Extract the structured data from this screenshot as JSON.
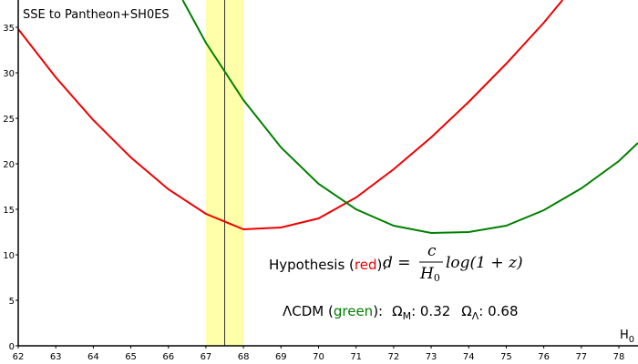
{
  "chart_data": {
    "type": "line",
    "title": "SSE to Pantheon+SH0ES",
    "xlabel": "H",
    "xlabel_sub": "0",
    "xlim": [
      62,
      78.51
    ],
    "ylim": [
      0,
      38
    ],
    "xticks": [
      62,
      63,
      64,
      65,
      66,
      67,
      68,
      69,
      70,
      71,
      72,
      73,
      74,
      75,
      76,
      77,
      78
    ],
    "yticks": [
      0,
      5,
      10,
      15,
      20,
      25,
      30,
      35
    ],
    "band": [
      67,
      68
    ],
    "band_color": "#ffffaa",
    "vline": 67.5,
    "series": [
      {
        "name": "red",
        "color": "#ee0000",
        "x": [
          62,
          63,
          64,
          65,
          66,
          67,
          68,
          69,
          70,
          71,
          72,
          73,
          74,
          75,
          76,
          76.5
        ],
        "values": [
          34.8,
          29.5,
          24.8,
          20.7,
          17.2,
          14.5,
          12.8,
          13.0,
          14.0,
          16.3,
          19.4,
          22.9,
          26.8,
          31.0,
          35.5,
          38
        ]
      },
      {
        "name": "green",
        "color": "#008000",
        "x": [
          66.38,
          67,
          68,
          69,
          70,
          71,
          72,
          73,
          74,
          75,
          76,
          77,
          78,
          78.51
        ],
        "values": [
          38,
          33.3,
          27.0,
          21.8,
          17.8,
          15.0,
          13.2,
          12.4,
          12.5,
          13.2,
          14.9,
          17.3,
          20.3,
          22.3
        ]
      }
    ],
    "annotations": {
      "hypothesis": {
        "prefix": "Hypothesis (",
        "word": "red",
        "suffix": "):",
        "lhs": "d =",
        "numerator": "c",
        "denominator": "H",
        "denominator_sub": "0",
        "rest": "log(1 + z)"
      },
      "lcdm": {
        "prefix": "ΛCDM (",
        "word": "green",
        "suffix": "):",
        "om": "Ω",
        "om_sub": "M",
        "om_val": ":  0.32",
        "ol": "Ω",
        "ol_sub": "Λ",
        "ol_val": ":  0.68"
      }
    }
  }
}
